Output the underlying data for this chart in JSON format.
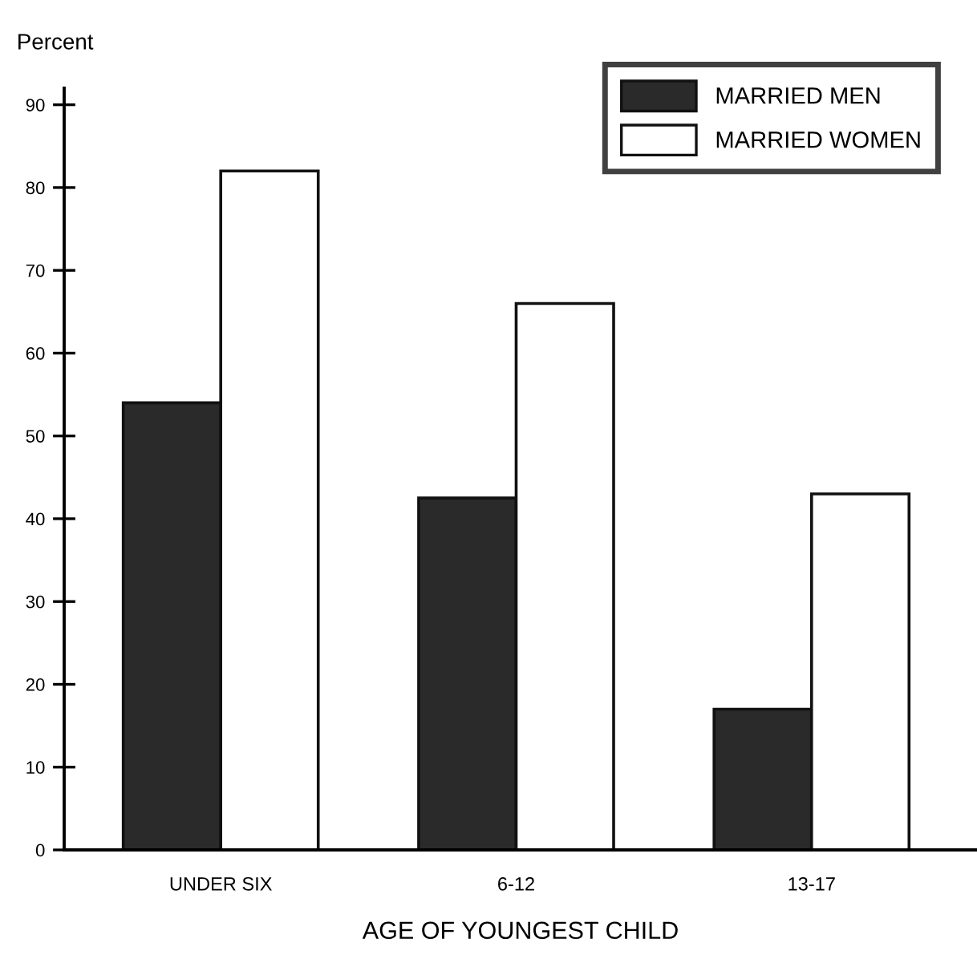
{
  "chart_data": {
    "type": "bar",
    "ylabel": "Percent",
    "xlabel": "AGE OF YOUNGEST CHILD",
    "categories": [
      "UNDER SIX",
      "6-12",
      "13-17"
    ],
    "series": [
      {
        "name": "MARRIED MEN",
        "color": "#2a2a2a",
        "values": [
          54,
          42.5,
          17
        ]
      },
      {
        "name": "MARRIED WOMEN",
        "color": "#ffffff",
        "values": [
          82,
          66,
          43
        ]
      }
    ],
    "ylim": [
      0,
      92
    ],
    "yticks": [
      0,
      10,
      20,
      30,
      40,
      50,
      60,
      70,
      80,
      90
    ],
    "grid": false,
    "legend": "top right"
  }
}
